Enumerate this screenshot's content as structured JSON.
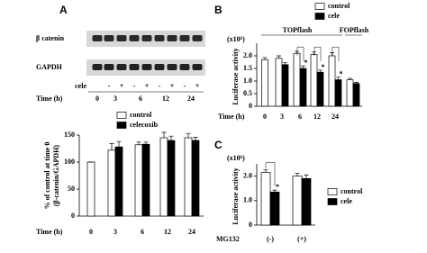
{
  "panel_labels": [
    "A",
    "B",
    "C"
  ],
  "blot": {
    "rows": [
      "β catenin",
      "GAPDH"
    ],
    "treatment_label": "cele",
    "treatment": [
      null,
      "-",
      "+",
      "-",
      "+",
      "-",
      "+",
      "-",
      "+"
    ],
    "time_label": "Time (h)",
    "times": [
      "0",
      "3",
      "6",
      "12",
      "24"
    ]
  },
  "chart_data": [
    {
      "type": "bar",
      "y_label": [
        "% of control at time 0",
        "(β-catenin/GAPDH)"
      ],
      "x_label": "Time (h)",
      "categories": [
        "0",
        "3",
        "6",
        "12",
        "24"
      ],
      "series": [
        {
          "name": "control",
          "color": "#ffffff",
          "values": [
            100,
            122,
            132,
            145,
            145
          ],
          "errors": [
            0,
            12,
            5,
            10,
            8
          ]
        },
        {
          "name": "celecoxib",
          "color": "#000000",
          "values": [
            null,
            128,
            133,
            140,
            140
          ],
          "errors": [
            null,
            10,
            4,
            8,
            6
          ]
        }
      ],
      "ylim": [
        0,
        150
      ],
      "yticks": [
        0,
        50,
        100,
        150
      ]
    },
    {
      "type": "bar",
      "y_label": [
        "Luciferase activity"
      ],
      "y_unit": "(x10⁶)",
      "x_label": "Time (h)",
      "group_labels": [
        "TOPflash",
        "FOPflash"
      ],
      "categories": [
        "0",
        "3",
        "6",
        "12",
        "24",
        null
      ],
      "series": [
        {
          "name": "control",
          "color": "#ffffff",
          "values": [
            1.85,
            1.9,
            2.1,
            2.05,
            2.0,
            1.05
          ],
          "errors": [
            0.08,
            0.1,
            0.08,
            0.1,
            0.12,
            0.06
          ]
        },
        {
          "name": "cele",
          "color": "#000000",
          "values": [
            null,
            1.65,
            1.5,
            1.35,
            1.05,
            0.9
          ],
          "errors": [
            null,
            0.08,
            0.1,
            0.08,
            0.1,
            0.05
          ],
          "markers": [
            null,
            null,
            "*",
            "*",
            "*",
            null
          ]
        }
      ],
      "ylim": [
        0,
        2.5
      ],
      "yticks": [
        0,
        0.5,
        {
          "value": 1,
          "label": "1.0"
        },
        1.5,
        {
          "value": 2,
          "label": "2.0"
        }
      ]
    },
    {
      "type": "bar",
      "y_label": [
        "Luciferase activity"
      ],
      "y_unit": "(x10⁶)",
      "x_label": "MG132",
      "categories": [
        "(-)",
        "(+)"
      ],
      "series": [
        {
          "name": "control",
          "color": "#ffffff",
          "values": [
            2.15,
            2.0
          ],
          "errors": [
            0.1,
            0.12
          ]
        },
        {
          "name": "cele",
          "color": "#000000",
          "values": [
            1.35,
            1.9
          ],
          "errors": [
            0.08,
            0.15
          ],
          "markers": [
            "*",
            null
          ]
        }
      ],
      "ylim": [
        0,
        2.5
      ],
      "yticks": [
        0,
        {
          "value": 1,
          "label": "1.0"
        },
        {
          "value": 2,
          "label": "2.0"
        }
      ]
    }
  ]
}
